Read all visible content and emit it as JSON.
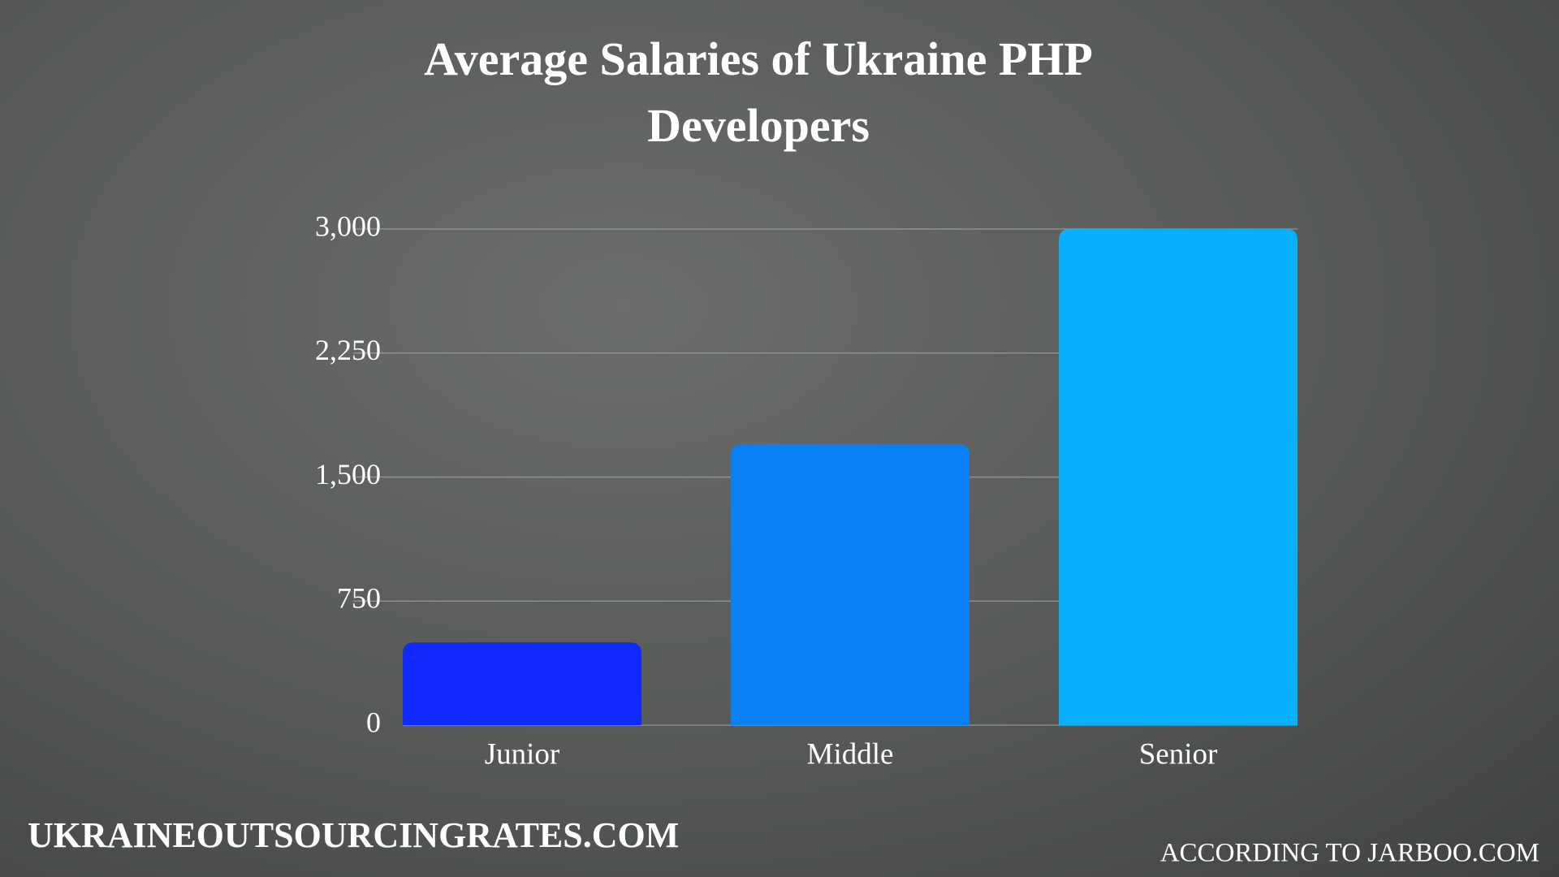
{
  "chart_data": {
    "type": "bar",
    "title": "Average Salaries of Ukraine PHP Developers",
    "categories": [
      "Junior",
      "Middle",
      "Senior"
    ],
    "values": [
      500,
      1700,
      3000
    ],
    "colors": [
      "#1029ff",
      "#0a80f6",
      "#08b0ff"
    ],
    "ylim": [
      0,
      3000
    ],
    "yticks": [
      0,
      750,
      {
        "value": 1500,
        "label": "1,500"
      },
      {
        "value": 2250,
        "label": "2,250"
      },
      {
        "value": 3000,
        "label": "3,000"
      }
    ],
    "grid": true,
    "annotations": [
      "UKRAINEOUTSOURCINGRATES.COM",
      "ACCORDING TO JARBOO.COM"
    ]
  }
}
